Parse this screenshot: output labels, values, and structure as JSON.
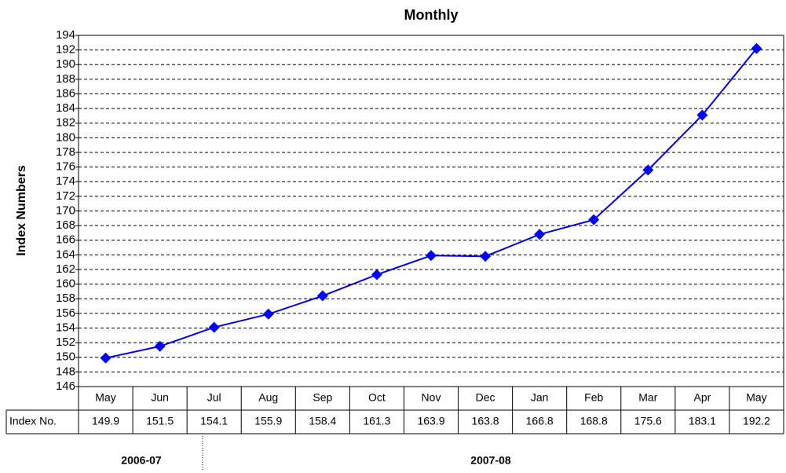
{
  "chart_data": {
    "type": "line",
    "title": "Monthly",
    "y_label": "Index Numbers",
    "categories": [
      "May",
      "Jun",
      "Jul",
      "Aug",
      "Sep",
      "Oct",
      "Nov",
      "Dec",
      "Jan",
      "Feb",
      "Mar",
      "Apr",
      "May"
    ],
    "series": [
      {
        "name": "Index No.",
        "color": "#0000ff",
        "values": [
          149.9,
          151.5,
          154.1,
          155.9,
          158.4,
          161.3,
          163.9,
          163.8,
          166.8,
          168.8,
          175.6,
          183.1,
          192.2
        ]
      }
    ],
    "ylim": [
      146,
      194
    ],
    "yticks": [
      146,
      148,
      150,
      152,
      154,
      156,
      158,
      160,
      162,
      164,
      166,
      168,
      170,
      172,
      174,
      176,
      178,
      180,
      182,
      184,
      186,
      188,
      190,
      192,
      194
    ],
    "grid": true,
    "year_labels": [
      "2006-07",
      "2007-08"
    ]
  }
}
